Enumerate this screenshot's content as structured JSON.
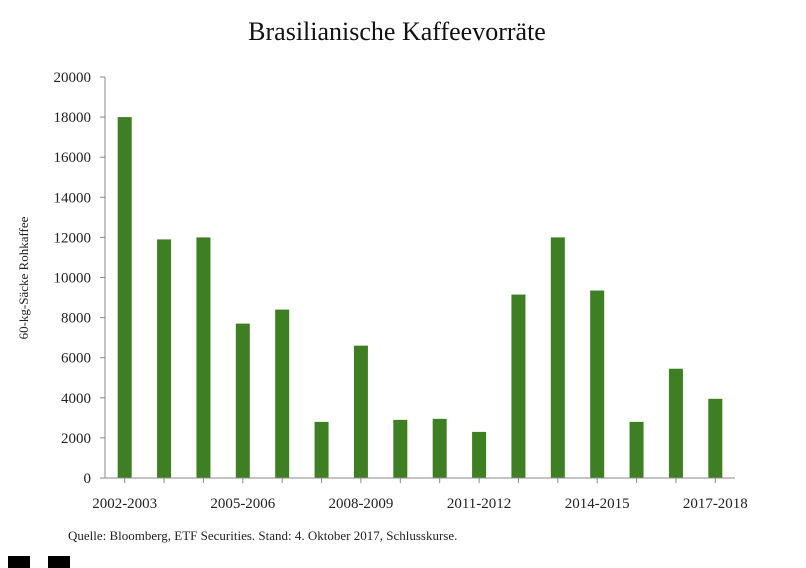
{
  "chart_data": {
    "type": "bar",
    "title": "Brasilianische Kaffeevorräte",
    "ylabel": "60-kg-Säcke Rohkaffee",
    "xlabel": "",
    "ylim": [
      0,
      20000
    ],
    "yticks": [
      0,
      2000,
      4000,
      6000,
      8000,
      10000,
      12000,
      14000,
      16000,
      18000,
      20000
    ],
    "xtick_labels": [
      "2002-2003",
      "2005-2006",
      "2008-2009",
      "2011-2012",
      "2014-2015",
      "2017-2018"
    ],
    "categories": [
      "2002-2003",
      "2003-2004",
      "2004-2005",
      "2005-2006",
      "2006-2007",
      "2007-2008",
      "2008-2009",
      "2009-2010",
      "2010-2011",
      "2011-2012",
      "2012-2013",
      "2013-2014",
      "2014-2015",
      "2015-2016",
      "2016-2017",
      "2017-2018"
    ],
    "values": [
      18000,
      11900,
      12000,
      7700,
      8400,
      2800,
      6600,
      2900,
      2950,
      2300,
      9150,
      12000,
      9350,
      2800,
      5450,
      3950
    ],
    "bar_color": "#3f7f24",
    "grid": false,
    "source": "Quelle: Bloomberg, ETF Securities. Stand: 4. Oktober 2017, Schlusskurse."
  }
}
